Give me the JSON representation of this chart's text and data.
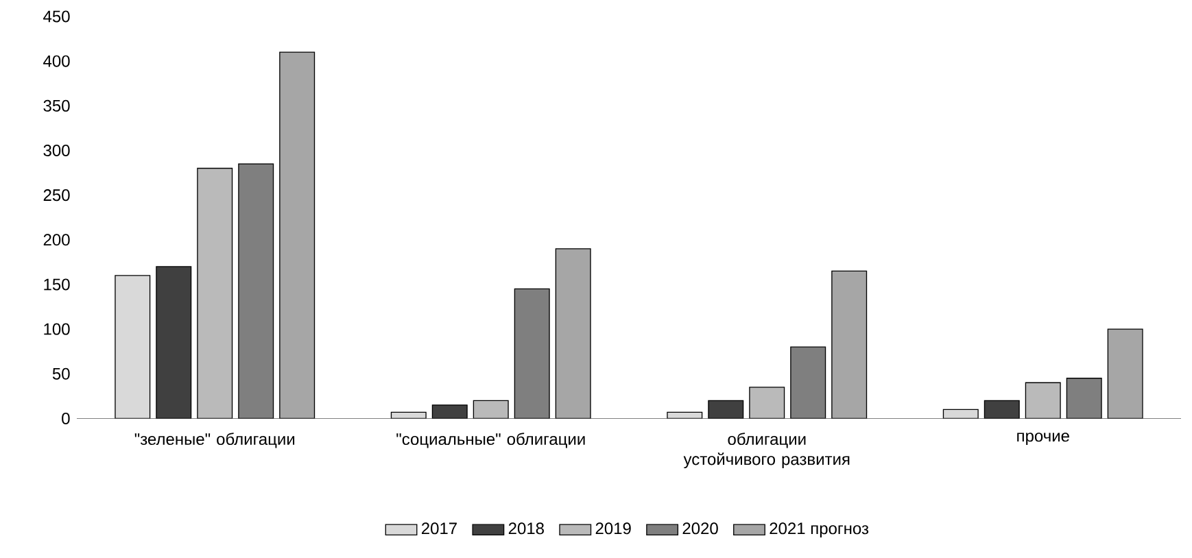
{
  "chart_data": {
    "type": "bar",
    "categories": [
      "\"зеленые\" облигации",
      "\"социальные\" облигации",
      "облигации устойчивого развития",
      "прочие"
    ],
    "series": [
      {
        "name": "2017",
        "color": "#d9d9d9",
        "values": [
          160,
          7,
          7,
          10
        ]
      },
      {
        "name": "2018",
        "color": "#404040",
        "values": [
          170,
          15,
          20,
          20
        ]
      },
      {
        "name": "2019",
        "color": "#bababa",
        "values": [
          280,
          20,
          35,
          40
        ]
      },
      {
        "name": "2020",
        "color": "#7f7f7f",
        "values": [
          285,
          145,
          80,
          45
        ]
      },
      {
        "name": "2021 прогноз",
        "color": "#a6a6a6",
        "values": [
          410,
          190,
          165,
          100
        ]
      }
    ],
    "ylim": [
      0,
      450
    ],
    "yticks": [
      0,
      50,
      100,
      150,
      200,
      250,
      300,
      350,
      400,
      450
    ],
    "grid": false,
    "legend": "bottom"
  }
}
